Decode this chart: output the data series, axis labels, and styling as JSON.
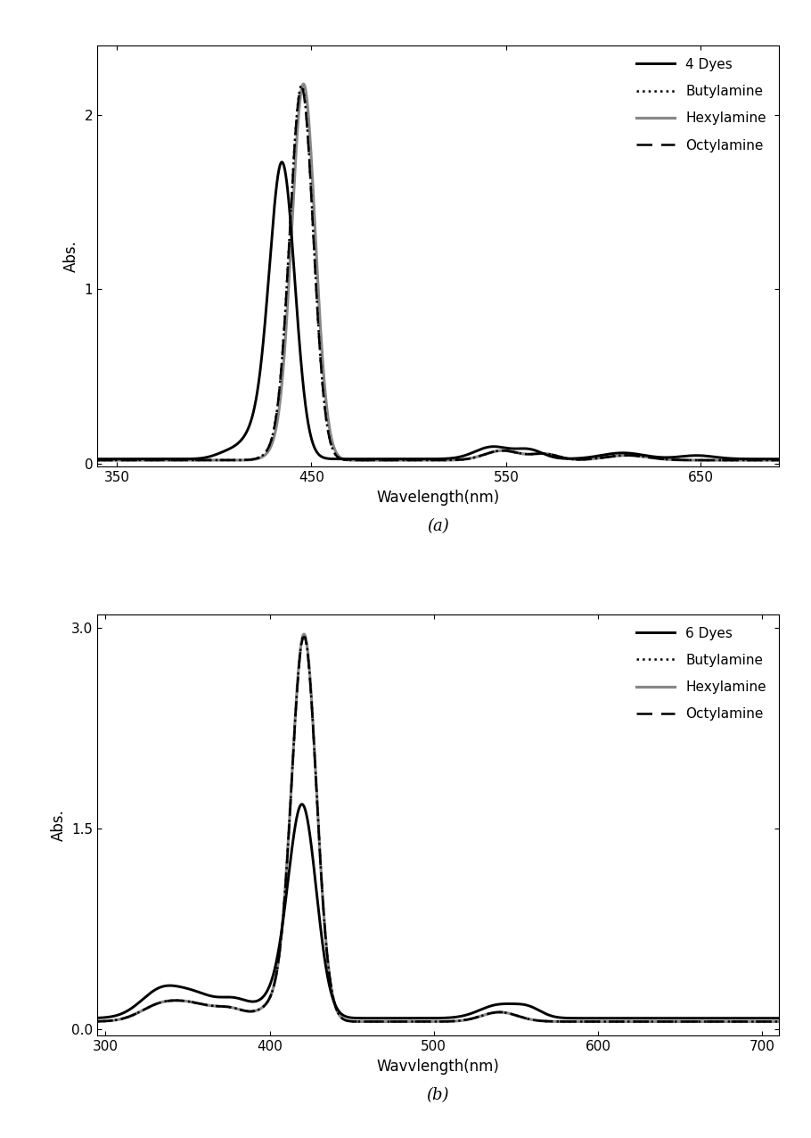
{
  "panel_a": {
    "xlabel": "Wavelength(nm)",
    "ylabel": "Abs.",
    "xlim": [
      340,
      690
    ],
    "ylim": [
      -0.02,
      2.4
    ],
    "xticks": [
      350,
      450,
      550,
      650
    ],
    "yticks": [
      0,
      1,
      2
    ],
    "legend_label_dyes": "4 Dyes",
    "legend_label_butyl": "Butylamine",
    "legend_label_hexyl": "Hexylamine",
    "legend_label_octyl": "Octylamine"
  },
  "panel_b": {
    "xlabel": "Wavvlength(nm)",
    "ylabel": "Abs.",
    "xlim": [
      295,
      710
    ],
    "ylim": [
      -0.05,
      3.1
    ],
    "xticks": [
      300,
      400,
      500,
      600,
      700
    ],
    "yticks": [
      0,
      1.5,
      3
    ],
    "legend_label_dyes": "6 Dyes",
    "legend_label_butyl": "Butylamine",
    "legend_label_hexyl": "Hexylamine",
    "legend_label_octyl": "Octylamine"
  },
  "subplot_labels": [
    "(a)",
    "(b)"
  ],
  "figsize": [
    9.1,
    12.76
  ],
  "dpi": 100
}
